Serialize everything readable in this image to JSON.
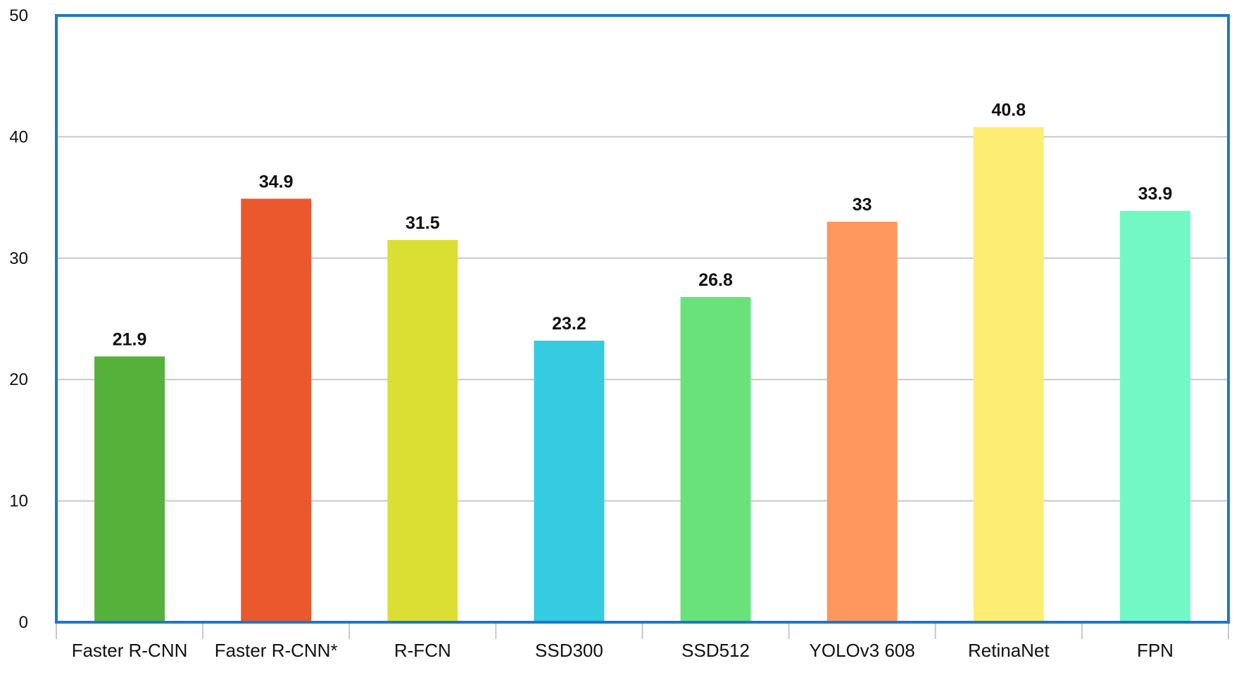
{
  "chart_data": {
    "type": "bar",
    "title": "",
    "xlabel": "",
    "ylabel": "",
    "categories": [
      "Faster R-CNN",
      "Faster R-CNN*",
      "R-FCN",
      "SSD300",
      "SSD512",
      "YOLOv3 608",
      "RetinaNet",
      "FPN"
    ],
    "values": [
      21.9,
      34.9,
      31.5,
      23.2,
      26.8,
      33,
      40.8,
      33.9
    ],
    "value_labels": [
      "21.9",
      "34.9",
      "31.5",
      "23.2",
      "26.8",
      "33",
      "40.8",
      "33.9"
    ],
    "colors": [
      "#55b13a",
      "#ea582d",
      "#dcdf33",
      "#35cbe0",
      "#6ae27a",
      "#ff975e",
      "#fded73",
      "#72f8c5"
    ],
    "ylim": [
      0,
      50
    ],
    "yticks": [
      0,
      10,
      20,
      30,
      40,
      50
    ],
    "ytick_labels": [
      "0",
      "10",
      "20",
      "30",
      "40",
      "50"
    ],
    "grid": true,
    "frame_color": "#1f77c6",
    "grid_color": "#c8c8c8"
  }
}
